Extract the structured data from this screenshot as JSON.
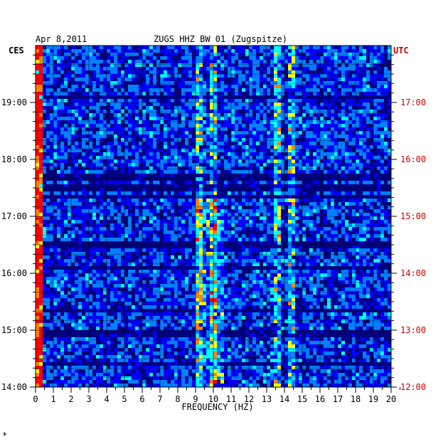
{
  "chart_data": {
    "type": "heatmap",
    "date": "Apr 8,2011",
    "title": "ZUGS HHZ BW 01 (Zugspitze)",
    "left_axis_label": "CES",
    "right_axis_label": "UTC",
    "xlabel": "FREQUENCY (HZ)",
    "xlim": [
      0,
      20
    ],
    "x_ticks": [
      "0",
      "1",
      "2",
      "3",
      "4",
      "5",
      "6",
      "7",
      "8",
      "9",
      "10",
      "11",
      "12",
      "13",
      "14",
      "15",
      "16",
      "17",
      "18",
      "19",
      "20"
    ],
    "left_time_range": [
      "14:00",
      "19:55"
    ],
    "left_ticks": [
      {
        "time": 14,
        "label": "14:00"
      },
      {
        "time": 15,
        "label": "15:00"
      },
      {
        "time": 16,
        "label": "16:00"
      },
      {
        "time": 17,
        "label": "17:00"
      },
      {
        "time": 18,
        "label": "18:00"
      },
      {
        "time": 19,
        "label": "19:00"
      }
    ],
    "right_ticks": [
      {
        "time": 14,
        "label": "12:00"
      },
      {
        "time": 15,
        "label": "13:00"
      },
      {
        "time": 16,
        "label": "14:00"
      },
      {
        "time": 17,
        "label": "15:00"
      },
      {
        "time": 18,
        "label": "16:00"
      },
      {
        "time": 19,
        "label": "17:00"
      }
    ],
    "grid": true,
    "colormap": [
      "#00007f",
      "#0000ff",
      "#0080ff",
      "#00ffff",
      "#ffff00",
      "#ff8000",
      "#ff0000"
    ],
    "quiet_hours": [
      17.35,
      17.5,
      17.7,
      16.5,
      16.1,
      15.35,
      14.95,
      14.4,
      19.1
    ],
    "bright_lines_hz": [
      0.25,
      9.2,
      10.0,
      13.6,
      14.4
    ],
    "footnote": "*"
  }
}
